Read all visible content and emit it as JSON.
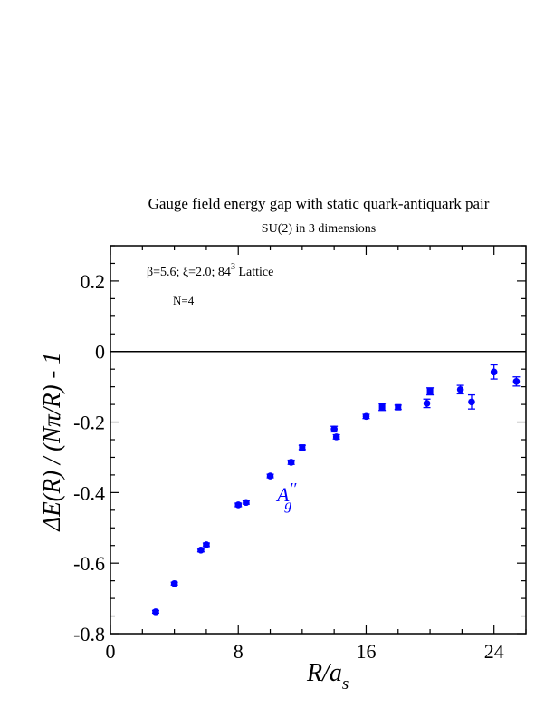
{
  "chart_data": {
    "type": "scatter",
    "title": "Gauge field energy gap with static quark-antiquark pair",
    "subtitle": "SU(2) in 3 dimensions",
    "xlabel": {
      "main": "R/a",
      "sub": "s"
    },
    "ylabel": "ΔE(R) / (Nπ/R) - 1",
    "xlim": [
      0,
      26
    ],
    "ylim": [
      -0.8,
      0.3
    ],
    "x_ticks": [
      0,
      8,
      16,
      24
    ],
    "x_tick_labels": [
      "0",
      "8",
      "16",
      "24"
    ],
    "y_ticks": [
      -0.8,
      -0.6,
      -0.4,
      -0.2,
      0,
      0.2
    ],
    "y_tick_labels": [
      "-0.8",
      "-0.6",
      "-0.4",
      "-0.2",
      "0",
      "0.2"
    ],
    "zero_line": true,
    "grid": false,
    "color": "#0000ff",
    "annotations": {
      "params": {
        "text": "β=5.6;  ξ=2.0;  84",
        "sup": "3",
        "after": " Lattice"
      },
      "n": "N=4",
      "series_label": {
        "main": "A",
        "prime": "′′",
        "sub": "g"
      }
    },
    "series": [
      {
        "marker": "circle",
        "points": [
          {
            "x": 2.83,
            "y": -0.738,
            "err": 0.004
          },
          {
            "x": 4.0,
            "y": -0.658,
            "err": 0.004
          },
          {
            "x": 5.66,
            "y": -0.563,
            "err": 0.005
          },
          {
            "x": 6.0,
            "y": -0.548,
            "err": 0.005
          },
          {
            "x": 8.0,
            "y": -0.435,
            "err": 0.005
          },
          {
            "x": 8.49,
            "y": -0.428,
            "err": 0.005
          },
          {
            "x": 10.0,
            "y": -0.353,
            "err": 0.005
          },
          {
            "x": 11.31,
            "y": -0.314,
            "err": 0.006
          },
          {
            "x": 14.0,
            "y": -0.22,
            "err": 0.008
          },
          {
            "x": 14.14,
            "y": -0.242,
            "err": 0.006
          },
          {
            "x": 16.0,
            "y": -0.184,
            "err": 0.006
          },
          {
            "x": 19.8,
            "y": -0.147,
            "err": 0.012
          },
          {
            "x": 21.9,
            "y": -0.108,
            "err": 0.012
          },
          {
            "x": 22.6,
            "y": -0.143,
            "err": 0.02
          },
          {
            "x": 24.0,
            "y": -0.058,
            "err": 0.02
          },
          {
            "x": 25.4,
            "y": -0.085,
            "err": 0.013
          }
        ]
      },
      {
        "marker": "square",
        "points": [
          {
            "x": 12.0,
            "y": -0.272,
            "err": 0.006
          },
          {
            "x": 17.0,
            "y": -0.157,
            "err": 0.01
          },
          {
            "x": 18.0,
            "y": -0.158,
            "err": 0.006
          },
          {
            "x": 20.0,
            "y": -0.113,
            "err": 0.01
          }
        ]
      }
    ]
  }
}
